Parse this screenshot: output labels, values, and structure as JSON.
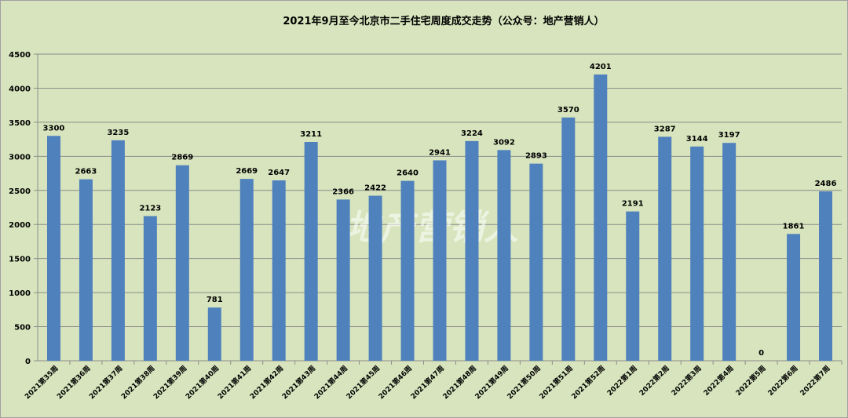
{
  "chart_data": {
    "type": "bar",
    "title": "2021年9月至今北京市二手住宅周度成交走势（公众号：地产营销人）",
    "xlabel": "",
    "ylabel": "",
    "ylim": [
      0,
      4500
    ],
    "yticks": [
      0,
      500,
      1000,
      1500,
      2000,
      2500,
      3000,
      3500,
      4000,
      4500
    ],
    "grid": true,
    "watermark": "地产营销人",
    "categories": [
      "2021第35周",
      "2021第36周",
      "2021第37周",
      "2021第38周",
      "2021第39周",
      "2021第40周",
      "2021第41周",
      "2021第42周",
      "2021第43周",
      "2021第44周",
      "2021第45周",
      "2021第46周",
      "2021第47周",
      "2021第48周",
      "2021第49周",
      "2021第50周",
      "2021第51周",
      "2021第52周",
      "2022第1周",
      "2022第2周",
      "2022第3周",
      "2022第4周",
      "2022第5周",
      "2022第6周",
      "2022第7周"
    ],
    "values": [
      3300,
      2663,
      3235,
      2123,
      2869,
      781,
      2669,
      2647,
      3211,
      2366,
      2422,
      2640,
      2941,
      3224,
      3092,
      2893,
      3570,
      4201,
      2191,
      3287,
      3144,
      3197,
      0,
      1861,
      2486
    ],
    "colors": {
      "bar": "#4f81bd",
      "background": "#d7e4bd",
      "grid": "#8c8c8c"
    }
  }
}
